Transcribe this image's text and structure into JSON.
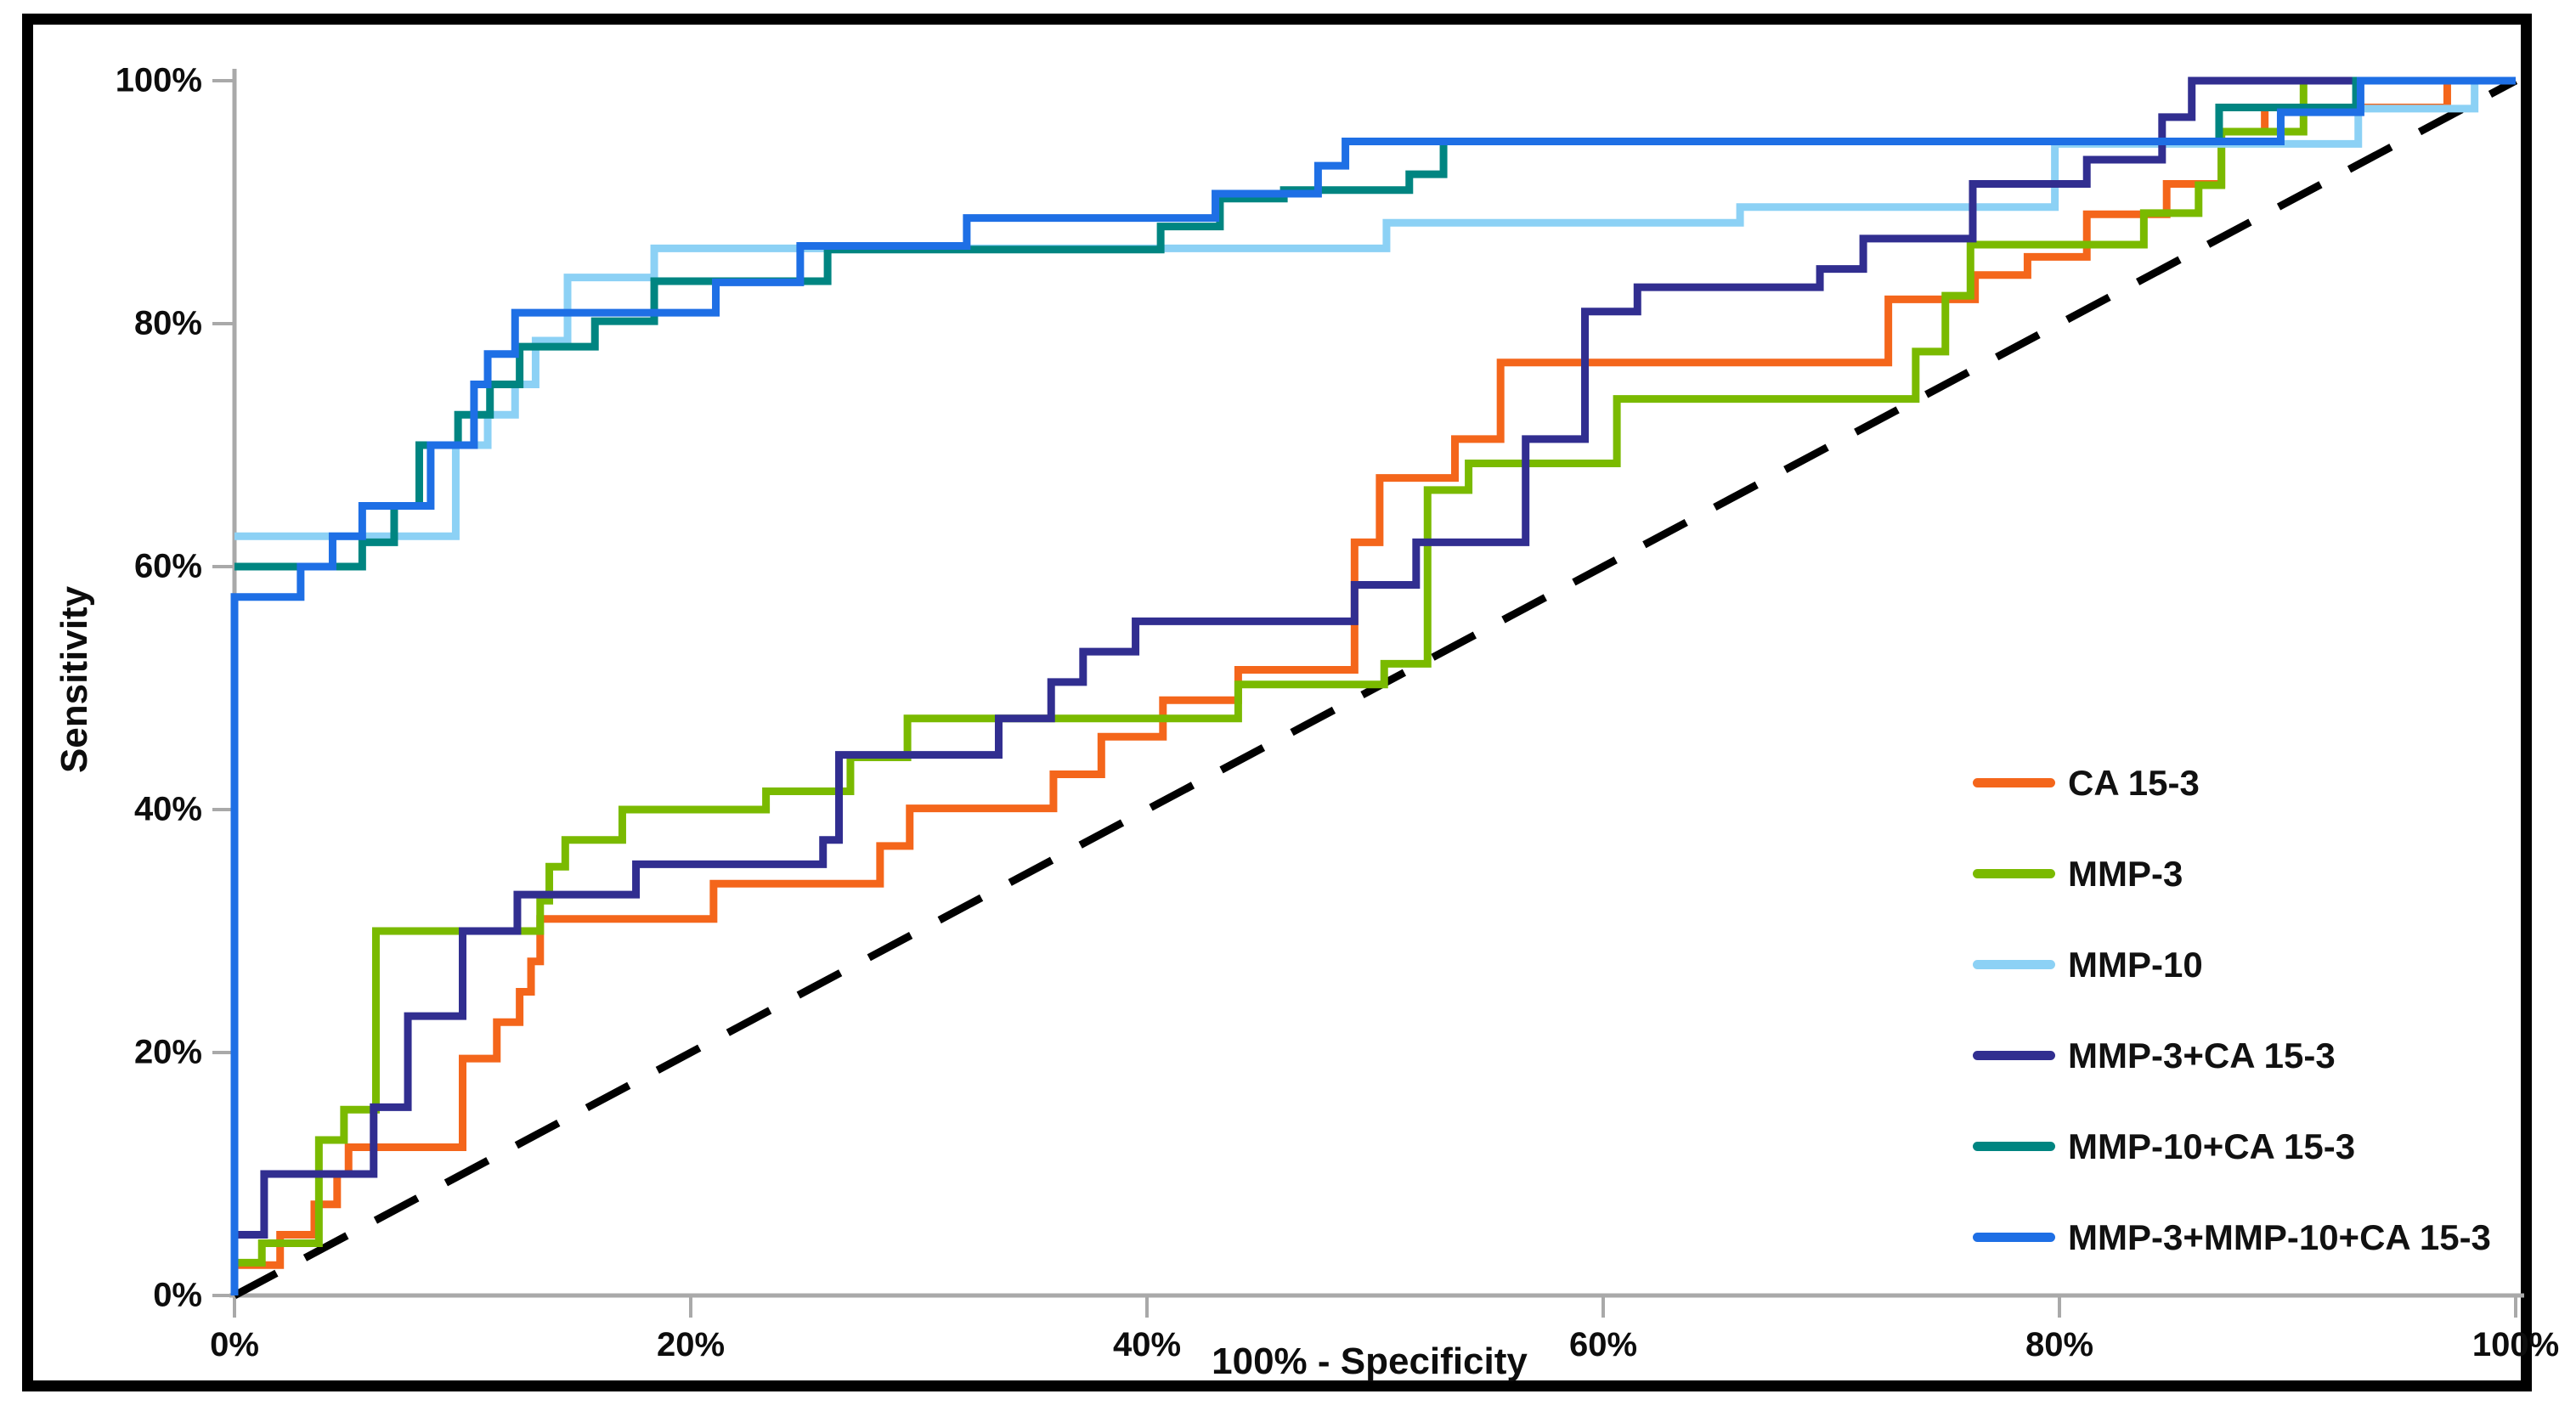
{
  "figure": {
    "background": "#ffffff",
    "border_color": "#000000"
  },
  "axes": {
    "x_title": "100% - Specificity",
    "y_title": "Sensitivity",
    "x_tick_labels": [
      "0%",
      "20%",
      "40%",
      "60%",
      "80%",
      "100%"
    ],
    "y_tick_labels": [
      "0%",
      "20%",
      "40%",
      "60%",
      "80%",
      "100%"
    ],
    "axis_color": "#a9a9a9",
    "tick_color": "#a9a9a9",
    "label_color": "#0d0d0d"
  },
  "chart_data": {
    "type": "line",
    "subtype": "roc-step-curves",
    "title": "",
    "xlabel": "100% - Specificity",
    "ylabel": "Sensitivity",
    "xlim": [
      0,
      100
    ],
    "ylim": [
      0,
      100
    ],
    "x_tick_values": [
      0,
      20,
      40,
      60,
      80,
      100
    ],
    "y_tick_values": [
      0,
      20,
      40,
      60,
      80,
      100
    ],
    "grid": false,
    "legend_position": "right-middle",
    "reference_line": {
      "name": "chance-diagonal",
      "style": "dashed",
      "color": "#000000",
      "points": [
        [
          0,
          0
        ],
        [
          100,
          100
        ]
      ]
    },
    "series": [
      {
        "id": "ca15-3",
        "name": "CA 15-3",
        "color": "#F4661B",
        "points": [
          [
            0,
            2.5
          ],
          [
            2,
            5
          ],
          [
            3.5,
            7.5
          ],
          [
            4.5,
            10
          ],
          [
            5,
            12.2
          ],
          [
            10,
            19.5
          ],
          [
            11.5,
            22.5
          ],
          [
            12.5,
            25
          ],
          [
            13,
            27.5
          ],
          [
            13.4,
            31
          ],
          [
            21,
            33.9
          ],
          [
            28.3,
            37
          ],
          [
            29.6,
            40.1
          ],
          [
            35.9,
            42.9
          ],
          [
            38,
            46
          ],
          [
            40.7,
            49
          ],
          [
            44,
            51.5
          ],
          [
            49.1,
            62
          ],
          [
            50.2,
            67.3
          ],
          [
            53.5,
            70.5
          ],
          [
            55.5,
            76.8
          ],
          [
            72.5,
            82
          ],
          [
            76.3,
            84
          ],
          [
            78.6,
            85.5
          ],
          [
            81.2,
            89
          ],
          [
            84.7,
            91.5
          ],
          [
            87.1,
            95.8
          ],
          [
            89,
            97.8
          ],
          [
            97,
            100
          ],
          [
            100,
            100
          ]
        ]
      },
      {
        "id": "mmp-3",
        "name": "MMP-3",
        "color": "#7ABA00",
        "points": [
          [
            0,
            2.7
          ],
          [
            1.2,
            4.3
          ],
          [
            3.7,
            12.8
          ],
          [
            4.8,
            15.3
          ],
          [
            6.2,
            30
          ],
          [
            13.4,
            32.5
          ],
          [
            13.8,
            35.3
          ],
          [
            14.5,
            37.5
          ],
          [
            17,
            40
          ],
          [
            23.3,
            41.5
          ],
          [
            27,
            44.3
          ],
          [
            29.5,
            47.5
          ],
          [
            44,
            50.3
          ],
          [
            50.4,
            52
          ],
          [
            52.3,
            66.3
          ],
          [
            54.1,
            68.5
          ],
          [
            60.6,
            73.8
          ],
          [
            73.7,
            77.7
          ],
          [
            75,
            82.3
          ],
          [
            76.1,
            86.5
          ],
          [
            83.7,
            89.1
          ],
          [
            86.1,
            91.4
          ],
          [
            87.1,
            95.8
          ],
          [
            90.7,
            100
          ],
          [
            100,
            100
          ]
        ]
      },
      {
        "id": "mmp-10",
        "name": "MMP-10",
        "color": "#8CD1F5",
        "points": [
          [
            0,
            62.5
          ],
          [
            9.7,
            70
          ],
          [
            11.1,
            72.5
          ],
          [
            12.3,
            75
          ],
          [
            13.2,
            78.6
          ],
          [
            14.6,
            83.8
          ],
          [
            18.4,
            86.2
          ],
          [
            50.5,
            88.3
          ],
          [
            66,
            89.6
          ],
          [
            79.8,
            94.8
          ],
          [
            93.1,
            97.7
          ],
          [
            98.2,
            100
          ],
          [
            100,
            100
          ]
        ]
      },
      {
        "id": "mmp-3-ca15-3",
        "name": "MMP-3+CA 15-3",
        "color": "#312E90",
        "points": [
          [
            0,
            5
          ],
          [
            1.3,
            10
          ],
          [
            6.1,
            15.5
          ],
          [
            7.6,
            23
          ],
          [
            10,
            30
          ],
          [
            12.4,
            33
          ],
          [
            17.6,
            35.5
          ],
          [
            25.8,
            37.5
          ],
          [
            26.5,
            44.5
          ],
          [
            33.5,
            47.5
          ],
          [
            35.8,
            50.5
          ],
          [
            37.2,
            53
          ],
          [
            39.5,
            55.5
          ],
          [
            49.1,
            58.5
          ],
          [
            51.8,
            62
          ],
          [
            56.6,
            70.5
          ],
          [
            59.2,
            81
          ],
          [
            61.5,
            83
          ],
          [
            69.5,
            84.5
          ],
          [
            71.4,
            87
          ],
          [
            76.2,
            91.5
          ],
          [
            81.2,
            93.5
          ],
          [
            84.5,
            97
          ],
          [
            85.8,
            100
          ],
          [
            100,
            100
          ]
        ]
      },
      {
        "id": "mmp-10-ca15-3",
        "name": "MMP-10+CA 15-3",
        "color": "#008581",
        "points": [
          [
            0,
            60
          ],
          [
            5.6,
            62
          ],
          [
            7,
            65
          ],
          [
            8.1,
            70
          ],
          [
            9.8,
            72.5
          ],
          [
            11.2,
            75
          ],
          [
            12.5,
            78.1
          ],
          [
            15.8,
            80.2
          ],
          [
            18.4,
            83.5
          ],
          [
            26,
            86.1
          ],
          [
            40.6,
            88
          ],
          [
            43.2,
            90.3
          ],
          [
            46,
            91
          ],
          [
            51.5,
            92.3
          ],
          [
            53,
            95
          ],
          [
            87,
            97.8
          ],
          [
            93,
            100
          ],
          [
            100,
            100
          ]
        ]
      },
      {
        "id": "mmp-3-mmp-10-ca15-3",
        "name": "MMP-3+MMP-10+CA 15-3",
        "color": "#1E6FE5",
        "points": [
          [
            0,
            0
          ],
          [
            0,
            57.5
          ],
          [
            2.9,
            60
          ],
          [
            4.3,
            62.5
          ],
          [
            5.6,
            65
          ],
          [
            8.6,
            70
          ],
          [
            10.5,
            75
          ],
          [
            11.1,
            77.5
          ],
          [
            12.3,
            80.9
          ],
          [
            21.1,
            83.4
          ],
          [
            24.8,
            86.4
          ],
          [
            32.1,
            88.7
          ],
          [
            43,
            90.7
          ],
          [
            47.5,
            93
          ],
          [
            48.7,
            95
          ],
          [
            89.7,
            97.4
          ],
          [
            93.2,
            100
          ],
          [
            100,
            100
          ]
        ]
      }
    ]
  }
}
